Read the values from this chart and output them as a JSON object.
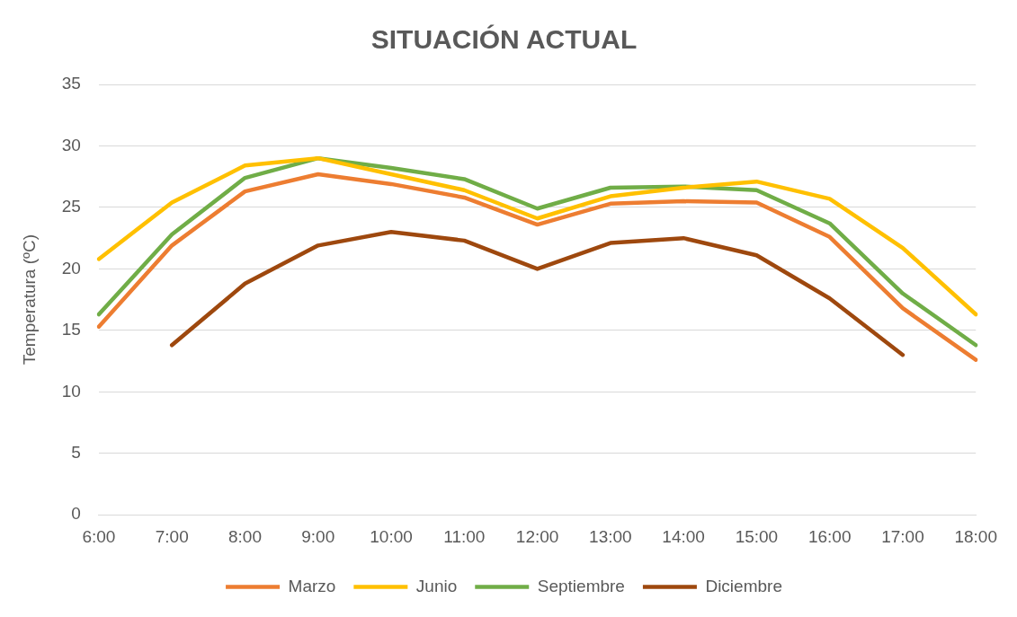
{
  "chart_data": {
    "type": "line",
    "title": "SITUACIÓN ACTUAL",
    "ylabel": "Temperatura (ºC)",
    "categories": [
      "6:00",
      "7:00",
      "8:00",
      "9:00",
      "10:00",
      "11:00",
      "12:00",
      "13:00",
      "14:00",
      "15:00",
      "16:00",
      "17:00",
      "18:00"
    ],
    "series": [
      {
        "name": "Marzo",
        "color": "#ed7d31",
        "values": [
          15.3,
          21.9,
          26.3,
          27.7,
          26.9,
          25.8,
          23.6,
          25.3,
          25.5,
          25.4,
          22.6,
          16.8,
          12.6
        ]
      },
      {
        "name": "Junio",
        "color": "#ffc000",
        "values": [
          20.8,
          25.4,
          28.4,
          29.0,
          27.7,
          26.4,
          24.1,
          25.9,
          26.6,
          27.1,
          25.7,
          21.7,
          16.3
        ]
      },
      {
        "name": "Septiembre",
        "color": "#70ad47",
        "values": [
          16.3,
          22.8,
          27.4,
          29.0,
          28.2,
          27.3,
          24.9,
          26.6,
          26.7,
          26.4,
          23.7,
          18.0,
          13.8
        ]
      },
      {
        "name": "Diciembre",
        "color": "#9e480e",
        "values": [
          null,
          13.8,
          18.8,
          21.9,
          23.0,
          22.3,
          20.0,
          22.1,
          22.5,
          21.1,
          17.6,
          13.0,
          null
        ]
      }
    ],
    "ylim": [
      0,
      35
    ],
    "yticks": [
      0,
      5,
      10,
      15,
      20,
      25,
      30,
      35
    ],
    "grid": "y",
    "legend": "bottom",
    "marker": "none",
    "line_style": "solid"
  }
}
